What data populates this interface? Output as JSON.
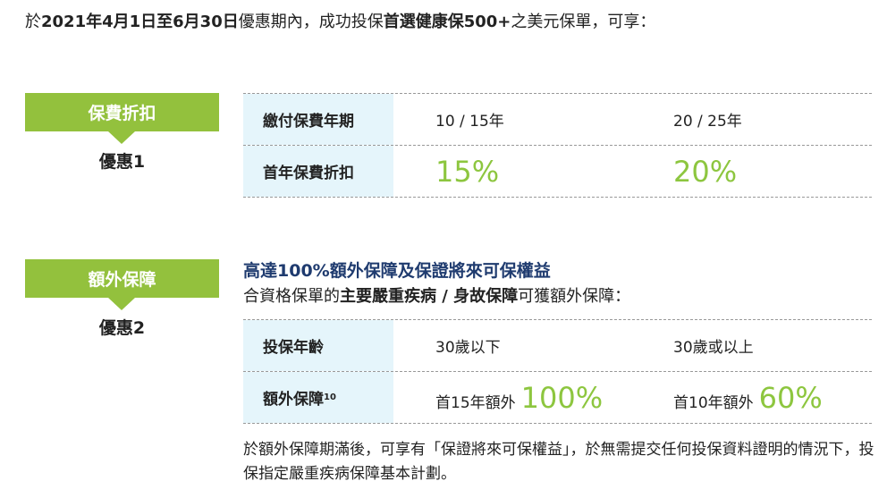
{
  "intro": {
    "pre": "於",
    "date": "2021年4月1日至6月30日",
    "mid": "優惠期內，成功投保",
    "product": "首選健康保500+",
    "post": "之美元保單，可享："
  },
  "offer1": {
    "tag": "保費折扣",
    "label": "優惠1",
    "rows": [
      {
        "header": "繳付保費年期",
        "c1": "10 / 15年",
        "c2": "20 / 25年"
      },
      {
        "header": "首年保費折扣",
        "c1": "15%",
        "c2": "20%"
      }
    ]
  },
  "offer2": {
    "tag": "額外保障",
    "label": "優惠2",
    "title": "高達100%額外保障及保證將來可保權益",
    "subtitle": {
      "pre": "合資格保單的",
      "bold": "主要嚴重疾病 / 身故保障",
      "post": "可獲額外保障："
    },
    "row1": {
      "header": "投保年齡",
      "c1": "30歲以下",
      "c2": "30歲或以上"
    },
    "row2": {
      "header": "額外保障",
      "sup": "10",
      "c1_pre": "首15年額外",
      "c1_val": "100%",
      "c2_pre": "首10年額外",
      "c2_val": "60%"
    },
    "footer": "於額外保障期滿後，可享有「保證將來可保權益」，於無需提交任何投保資料證明的情況下，投保指定嚴重疾病保障基本計劃。"
  },
  "colors": {
    "green": "#93c13d",
    "light_blue": "#e5f5fb",
    "navy": "#1f3b6f"
  }
}
